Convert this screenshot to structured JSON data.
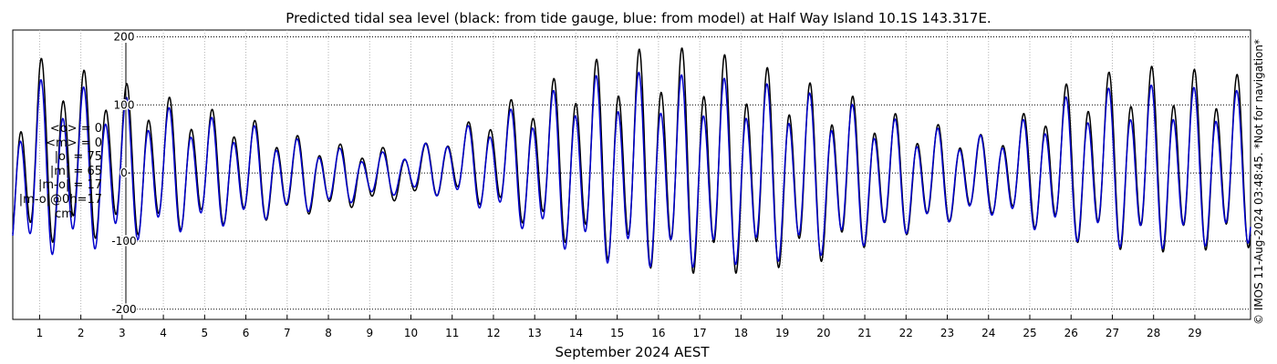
{
  "chart_data": {
    "type": "line",
    "title": "Predicted tidal sea level (black: from tide gauge, blue: from model) at Half Way Island 10.1S 143.317E.",
    "xlabel": "September 2024 AEST",
    "ylabel": "",
    "unit": "cm",
    "xlim": [
      0.35,
      30.35
    ],
    "ylim": [
      -215,
      210
    ],
    "x_ticks": [
      1,
      2,
      3,
      4,
      5,
      6,
      7,
      8,
      9,
      10,
      11,
      12,
      13,
      14,
      15,
      16,
      17,
      18,
      19,
      20,
      21,
      22,
      23,
      24,
      25,
      26,
      27,
      28,
      29
    ],
    "y_ticks": [
      -200,
      -100,
      0,
      100,
      200
    ],
    "grid": true,
    "series": [
      {
        "color": "#000000",
        "envelope": {
          "x": [
            0.35,
            1,
            2,
            3,
            4,
            5,
            6,
            7,
            8,
            9,
            10,
            11,
            12,
            13,
            14,
            15,
            16,
            17,
            18,
            19,
            20,
            21,
            22,
            23,
            24,
            25,
            26,
            27,
            28,
            29,
            30.35
          ],
          "high": [
            80,
            172,
            155,
            136,
            116,
            98,
            84,
            60,
            45,
            40,
            35,
            62,
            98,
            125,
            160,
            180,
            190,
            185,
            172,
            150,
            128,
            110,
            82,
            70,
            55,
            95,
            138,
            152,
            160,
            155,
            145
          ],
          "low": [
            -122,
            -115,
            -108,
            -102,
            -96,
            -85,
            -80,
            -70,
            -60,
            -50,
            -40,
            -35,
            -60,
            -90,
            -120,
            -145,
            -155,
            -162,
            -160,
            -150,
            -140,
            -118,
            -98,
            -78,
            -62,
            -85,
            -110,
            -122,
            -128,
            -125,
            -120
          ]
        }
      },
      {
        "color": "#0000cc",
        "envelope": {
          "x": [
            0.35,
            1,
            2,
            3,
            4,
            5,
            6,
            7,
            8,
            9,
            10,
            11,
            12,
            13,
            14,
            15,
            16,
            17,
            18,
            19,
            20,
            21,
            22,
            23,
            24,
            25,
            26,
            27,
            28,
            29,
            30.35
          ],
          "high": [
            75,
            140,
            130,
            115,
            100,
            85,
            75,
            55,
            40,
            30,
            35,
            62,
            85,
            110,
            140,
            152,
            150,
            145,
            140,
            130,
            115,
            98,
            75,
            65,
            55,
            85,
            118,
            128,
            132,
            128,
            122
          ],
          "low": [
            -133,
            -132,
            -126,
            -112,
            -98,
            -88,
            -80,
            -67,
            -55,
            -40,
            -32,
            -40,
            -65,
            -100,
            -130,
            -148,
            -150,
            -150,
            -145,
            -140,
            -130,
            -115,
            -96,
            -78,
            -65,
            -88,
            -108,
            -118,
            -122,
            -118,
            -112
          ]
        }
      }
    ]
  },
  "stats": {
    "mean_obs": "<o> = 0",
    "mean_model": "<m> = 0",
    "abs_obs": "|o| = 75",
    "abs_model": "|m| = 65",
    "abs_diff": "|m-o| = 17",
    "abs_diff_0h": "|m-o|@0h=17",
    "units": "cm"
  },
  "credit": "© IMOS 11-Aug-2024 03:48:45. *Not for navigation*"
}
